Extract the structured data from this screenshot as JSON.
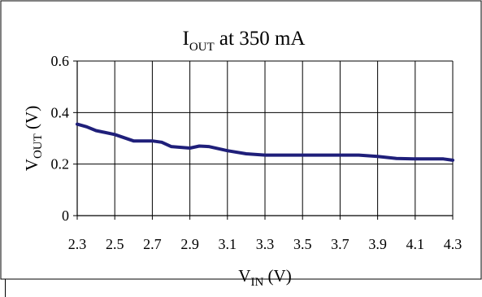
{
  "chart_data": {
    "type": "line",
    "title_main": "I",
    "title_sub": "OUT",
    "title_rest": " at 350 mA",
    "xlabel_main": "V",
    "xlabel_sub": "IN",
    "xlabel_rest": " (V)",
    "ylabel_main": "V",
    "ylabel_sub": "OUT",
    "ylabel_rest": " (V)",
    "xlim": [
      2.3,
      4.3
    ],
    "ylim": [
      0,
      0.6
    ],
    "x_ticks": [
      "2.3",
      "2.5",
      "2.7",
      "2.9",
      "3.1",
      "3.3",
      "3.5",
      "3.7",
      "3.9",
      "4.1",
      "4.3"
    ],
    "y_ticks": [
      "0",
      "0.2",
      "0.4",
      "0.6"
    ],
    "grid": true,
    "legend": "none",
    "series": [
      {
        "color": "#1f1f7a",
        "x": [
          2.3,
          2.35,
          2.4,
          2.5,
          2.6,
          2.7,
          2.75,
          2.8,
          2.9,
          2.95,
          3.0,
          3.1,
          3.2,
          3.3,
          3.4,
          3.5,
          3.6,
          3.7,
          3.8,
          3.9,
          4.0,
          4.1,
          4.2,
          4.25,
          4.3
        ],
        "y": [
          0.355,
          0.345,
          0.33,
          0.315,
          0.29,
          0.29,
          0.285,
          0.268,
          0.262,
          0.27,
          0.268,
          0.252,
          0.24,
          0.235,
          0.235,
          0.235,
          0.235,
          0.235,
          0.235,
          0.23,
          0.222,
          0.22,
          0.22,
          0.22,
          0.215
        ]
      }
    ]
  }
}
